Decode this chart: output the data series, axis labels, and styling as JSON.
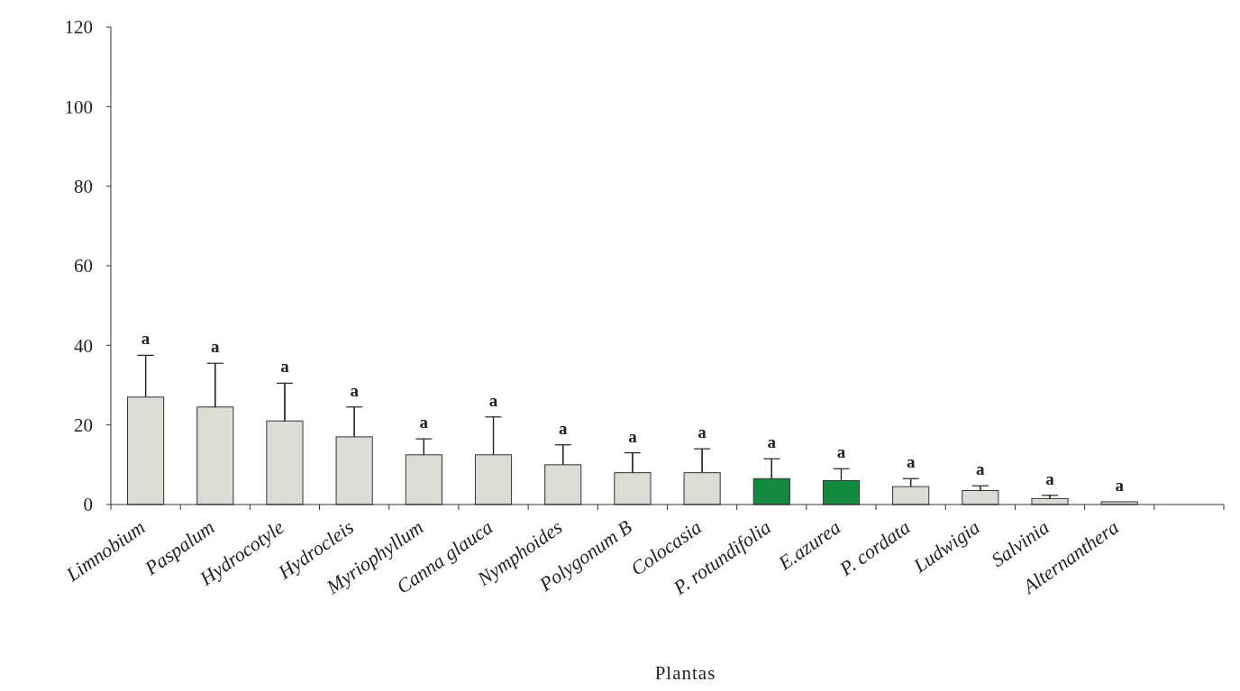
{
  "chart_data": {
    "type": "bar",
    "xlabel": "Plantas",
    "categories": [
      "Limnobium",
      "Paspalum",
      "Hydrocotyle",
      "Hydrocleis",
      "Myriophyllum",
      "Canna glauca",
      "Nymphoides",
      "Polygonum B",
      "Colocasia",
      "P. rotundifolia",
      "E.azurea",
      "P. cordata",
      "Ludwigia",
      "Salvinia",
      "Alternanthera"
    ],
    "values": [
      27,
      24.5,
      21,
      17,
      12.5,
      12.5,
      10,
      8,
      8,
      6.5,
      6,
      4.5,
      3.5,
      1.5,
      0.7
    ],
    "errors": [
      10.5,
      11,
      9.5,
      7.5,
      4,
      9.5,
      5,
      5,
      6,
      5,
      3,
      2,
      1.2,
      0.8,
      null
    ],
    "colors": [
      "#dcdcd6",
      "#dcdcd6",
      "#dcdcd6",
      "#dcdcd6",
      "#dcdcd6",
      "#dcdcd6",
      "#dcdcd6",
      "#dcdcd6",
      "#dcdcd6",
      "#138a3e",
      "#138a3e",
      "#dcdcd6",
      "#dcdcd6",
      "#dcdcd6",
      "#dcdcd6"
    ],
    "ylim": [
      0,
      120
    ],
    "yticks": [
      0,
      20,
      40,
      60,
      80,
      100,
      120
    ],
    "grid": false,
    "annotations": [
      {
        "text": "a",
        "x": "Limnobium",
        "y": 37.5
      },
      {
        "text": "a",
        "x": "Paspalum",
        "y": 35.5
      },
      {
        "text": "a",
        "x": "Hydrocotyle",
        "y": 30.5
      },
      {
        "text": "a",
        "x": "Hydrocleis",
        "y": 24.5
      },
      {
        "text": "a",
        "x": "Myriophyllum",
        "y": 16.5
      },
      {
        "text": "a",
        "x": "Canna glauca",
        "y": 22
      },
      {
        "text": "a",
        "x": "Nymphoides",
        "y": 15
      },
      {
        "text": "a",
        "x": "Polygonum B",
        "y": 13
      },
      {
        "text": "a",
        "x": "Colocasia",
        "y": 14
      },
      {
        "text": "a",
        "x": "P. rotundifolia",
        "y": 11.5
      },
      {
        "text": "a",
        "x": "E.azurea",
        "y": 9
      },
      {
        "text": "a",
        "x": "P. cordata",
        "y": 6.5
      },
      {
        "text": "a",
        "x": "Ludwigia",
        "y": 4.7
      },
      {
        "text": "a",
        "x": "Salvinia",
        "y": 2.3
      },
      {
        "text": "a",
        "x": "Alternanthera",
        "y": 0.7
      }
    ]
  }
}
